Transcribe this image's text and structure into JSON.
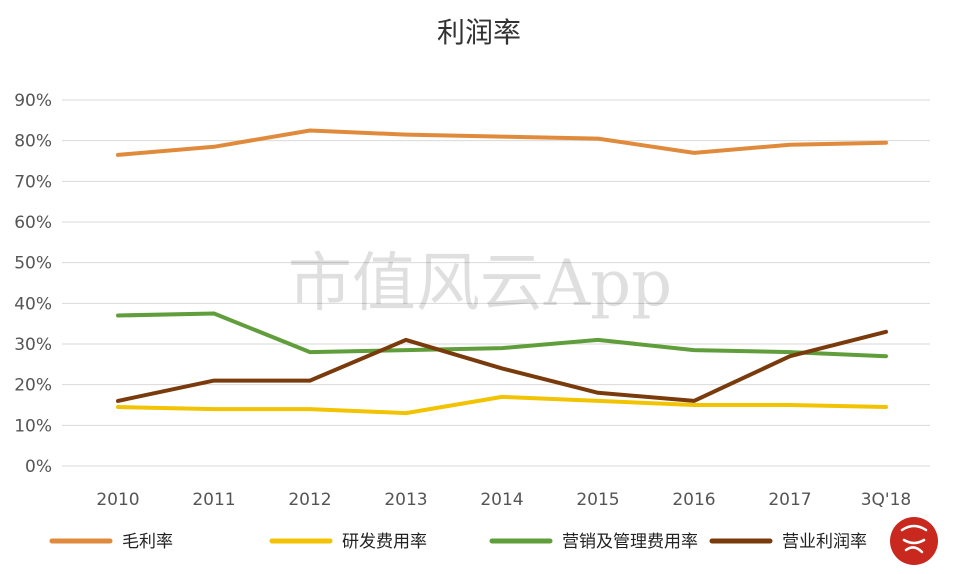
{
  "chart_data": {
    "type": "line",
    "title": "利润率",
    "categories": [
      "2010",
      "2011",
      "2012",
      "2013",
      "2014",
      "2015",
      "2016",
      "2017",
      "3Q'18"
    ],
    "ylim": [
      0,
      90
    ],
    "yticks": [
      "0%",
      "10%",
      "20%",
      "30%",
      "40%",
      "50%",
      "60%",
      "70%",
      "80%",
      "90%"
    ],
    "grid": true,
    "legend_position": "bottom",
    "series": [
      {
        "name": "毛利率",
        "color": "#e08a3c",
        "values": [
          76.5,
          78.5,
          82.5,
          81.5,
          81,
          80.5,
          77,
          79,
          79.5
        ]
      },
      {
        "name": "研发费用率",
        "color": "#f2c300",
        "values": [
          14.5,
          14,
          14,
          13,
          17,
          16,
          15,
          15,
          14.5
        ]
      },
      {
        "name": "营销及管理费用率",
        "color": "#5f9e3a",
        "values": [
          37,
          37.5,
          28,
          28.5,
          29,
          31,
          28.5,
          28,
          27
        ]
      },
      {
        "name": "营业利润率",
        "color": "#7a3b0c",
        "values": [
          16,
          21,
          21,
          31,
          24,
          18,
          16,
          27,
          33
        ]
      }
    ]
  },
  "watermark_text": "市值风云App",
  "logo_icon": "red-seal-logo-icon"
}
